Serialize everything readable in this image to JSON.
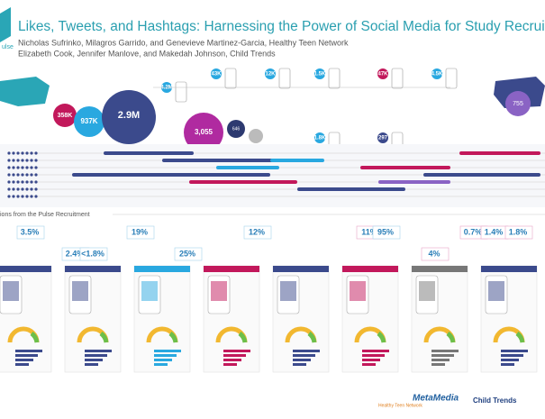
{
  "header": {
    "logo": "ulse",
    "title": "Likes, Tweets, and Hashtags: Harnessing the Power of Social Media for Study Recruitment",
    "authors": [
      "Nicholas Sufrinko, Milagros Garrido, and Genevieve Martinez-Garcia, Healthy Teen Network",
      "Elizabeth Cook, Jennifer Manlove, and Makedah Johnson, Child Trends"
    ]
  },
  "bubbles": [
    "358K",
    "937K",
    "2.9M",
    "3,055",
    "646"
  ],
  "flow_counts": [
    "4.2M",
    "43K",
    "12K",
    "1.5K",
    "1.8K",
    "47K",
    "4.5K",
    "297",
    "755"
  ],
  "section": "ions from the Pulse Recruitment",
  "stats": [
    "3.5%",
    "2.4%",
    "<1.8%",
    "19%",
    "25%",
    "12%",
    "11%",
    "95%",
    "4%",
    "0.7%",
    "1.4%",
    "1.8%"
  ],
  "logos": [
    "Healthy Teen Network",
    "MetaMedia",
    "Child Trends"
  ]
}
